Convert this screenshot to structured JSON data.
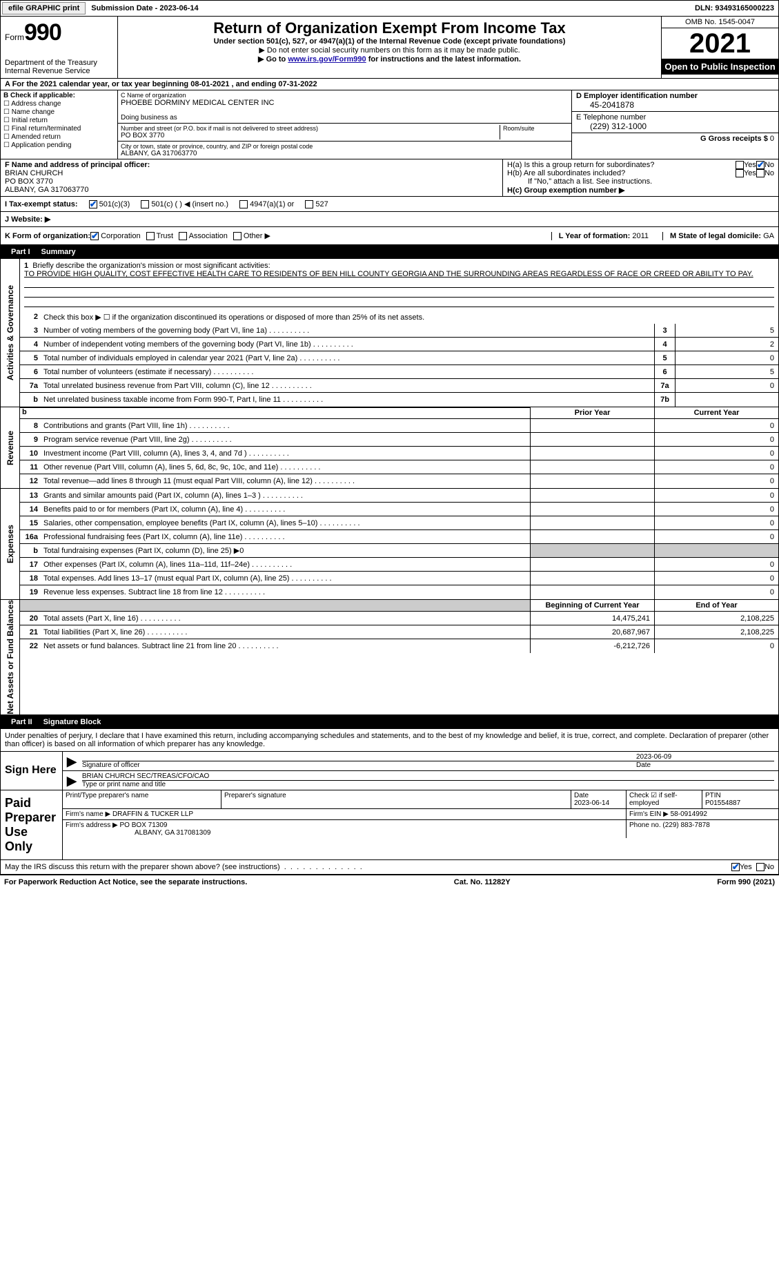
{
  "topbar": {
    "efile": "efile GRAPHIC print",
    "subdate_label": "Submission Date - ",
    "subdate": "2023-06-14",
    "dln_label": "DLN: ",
    "dln": "93493165000223"
  },
  "header": {
    "form_label": "Form",
    "form_num": "990",
    "title": "Return of Organization Exempt From Income Tax",
    "subtitle": "Under section 501(c), 527, or 4947(a)(1) of the Internal Revenue Code (except private foundations)",
    "note1": "▶ Do not enter social security numbers on this form as it may be made public.",
    "note2_pre": "▶ Go to ",
    "note2_link": "www.irs.gov/Form990",
    "note2_post": " for instructions and the latest information.",
    "dept": "Department of the Treasury",
    "irs": "Internal Revenue Service",
    "omb": "OMB No. 1545-0047",
    "year": "2021",
    "otp": "Open to Public Inspection"
  },
  "period": {
    "text": "A For the 2021 calendar year, or tax year beginning ",
    "begin": "08-01-2021",
    "mid": " , and ending ",
    "end": "07-31-2022"
  },
  "sectB": {
    "label": "B Check if applicable:",
    "opts": [
      "Address change",
      "Name change",
      "Initial return",
      "Final return/terminated",
      "Amended return",
      "Application pending"
    ]
  },
  "sectC": {
    "name_label": "C Name of organization",
    "name": "PHOEBE DORMINY MEDICAL CENTER INC",
    "dba_label": "Doing business as",
    "dba": "",
    "addr_label": "Number and street (or P.O. box if mail is not delivered to street address)",
    "room_label": "Room/suite",
    "addr": "PO BOX 3770",
    "city_label": "City or town, state or province, country, and ZIP or foreign postal code",
    "city": "ALBANY, GA  317063770"
  },
  "sectD": {
    "ein_label": "D Employer identification number",
    "ein": "45-2041878",
    "tel_label": "E Telephone number",
    "tel": "(229) 312-1000",
    "gross_label": "G Gross receipts $ ",
    "gross": "0"
  },
  "sectF": {
    "label": "F Name and address of principal officer:",
    "name": "BRIAN CHURCH",
    "addr1": "PO BOX 3770",
    "addr2": "ALBANY, GA  317063770"
  },
  "sectH": {
    "a_label": "H(a)  Is this a group return for subordinates?",
    "b_label": "H(b)  Are all subordinates included?",
    "b_note": "If \"No,\" attach a list. See instructions.",
    "c_label": "H(c)  Group exemption number ▶",
    "yes": "Yes",
    "no": "No"
  },
  "sectI": {
    "label": "I  Tax-exempt status:",
    "o1": "501(c)(3)",
    "o2": "501(c) (  ) ◀ (insert no.)",
    "o3": "4947(a)(1) or",
    "o4": "527"
  },
  "sectJ": {
    "label": "J  Website: ▶"
  },
  "sectK": {
    "label": "K Form of organization:",
    "o1": "Corporation",
    "o2": "Trust",
    "o3": "Association",
    "o4": "Other ▶",
    "L": "L Year of formation: ",
    "L_val": "2011",
    "M": "M State of legal domicile: ",
    "M_val": "GA"
  },
  "part1": {
    "hdr_num": "Part I",
    "hdr_title": "Summary",
    "vtab_ag": "Activities & Governance",
    "vtab_rev": "Revenue",
    "vtab_exp": "Expenses",
    "vtab_na": "Net Assets or Fund Balances",
    "l1": "Briefly describe the organization's mission or most significant activities:",
    "mission": "TO PROVIDE HIGH QUALITY, COST EFFECTIVE HEALTH CARE TO RESIDENTS OF BEN HILL COUNTY GEORGIA AND THE SURROUNDING AREAS REGARDLESS OF RACE OR CREED OR ABILITY TO PAY.",
    "l2": "Check this box ▶ ☐ if the organization discontinued its operations or disposed of more than 25% of its net assets.",
    "lines_ag": [
      {
        "n": "3",
        "d": "Number of voting members of the governing body (Part VI, line 1a)",
        "box": "3",
        "v": "5"
      },
      {
        "n": "4",
        "d": "Number of independent voting members of the governing body (Part VI, line 1b)",
        "box": "4",
        "v": "2"
      },
      {
        "n": "5",
        "d": "Total number of individuals employed in calendar year 2021 (Part V, line 2a)",
        "box": "5",
        "v": "0"
      },
      {
        "n": "6",
        "d": "Total number of volunteers (estimate if necessary)",
        "box": "6",
        "v": "5"
      },
      {
        "n": "7a",
        "d": "Total unrelated business revenue from Part VIII, column (C), line 12",
        "box": "7a",
        "v": "0"
      },
      {
        "n": "b",
        "d": "Net unrelated business taxable income from Form 990-T, Part I, line 11",
        "box": "7b",
        "v": ""
      }
    ],
    "col_prior": "Prior Year",
    "col_curr": "Current Year",
    "lines_rev": [
      {
        "n": "8",
        "d": "Contributions and grants (Part VIII, line 1h)",
        "p": "",
        "c": "0"
      },
      {
        "n": "9",
        "d": "Program service revenue (Part VIII, line 2g)",
        "p": "",
        "c": "0"
      },
      {
        "n": "10",
        "d": "Investment income (Part VIII, column (A), lines 3, 4, and 7d )",
        "p": "",
        "c": "0"
      },
      {
        "n": "11",
        "d": "Other revenue (Part VIII, column (A), lines 5, 6d, 8c, 9c, 10c, and 11e)",
        "p": "",
        "c": "0"
      },
      {
        "n": "12",
        "d": "Total revenue—add lines 8 through 11 (must equal Part VIII, column (A), line 12)",
        "p": "",
        "c": "0"
      }
    ],
    "lines_exp": [
      {
        "n": "13",
        "d": "Grants and similar amounts paid (Part IX, column (A), lines 1–3 )",
        "p": "",
        "c": "0"
      },
      {
        "n": "14",
        "d": "Benefits paid to or for members (Part IX, column (A), line 4)",
        "p": "",
        "c": "0"
      },
      {
        "n": "15",
        "d": "Salaries, other compensation, employee benefits (Part IX, column (A), lines 5–10)",
        "p": "",
        "c": "0"
      },
      {
        "n": "16a",
        "d": "Professional fundraising fees (Part IX, column (A), line 11e)",
        "p": "",
        "c": "0"
      },
      {
        "n": "b",
        "d": "Total fundraising expenses (Part IX, column (D), line 25) ▶0",
        "grey": true
      },
      {
        "n": "17",
        "d": "Other expenses (Part IX, column (A), lines 11a–11d, 11f–24e)",
        "p": "",
        "c": "0"
      },
      {
        "n": "18",
        "d": "Total expenses. Add lines 13–17 (must equal Part IX, column (A), line 25)",
        "p": "",
        "c": "0"
      },
      {
        "n": "19",
        "d": "Revenue less expenses. Subtract line 18 from line 12",
        "p": "",
        "c": "0"
      }
    ],
    "col_beg": "Beginning of Current Year",
    "col_end": "End of Year",
    "lines_na": [
      {
        "n": "20",
        "d": "Total assets (Part X, line 16)",
        "p": "14,475,241",
        "c": "2,108,225"
      },
      {
        "n": "21",
        "d": "Total liabilities (Part X, line 26)",
        "p": "20,687,967",
        "c": "2,108,225"
      },
      {
        "n": "22",
        "d": "Net assets or fund balances. Subtract line 21 from line 20",
        "p": "-6,212,726",
        "c": "0"
      }
    ]
  },
  "part2": {
    "hdr_num": "Part II",
    "hdr_title": "Signature Block",
    "decl": "Under penalties of perjury, I declare that I have examined this return, including accompanying schedules and statements, and to the best of my knowledge and belief, it is true, correct, and complete. Declaration of preparer (other than officer) is based on all information of which preparer has any knowledge.",
    "sign_here": "Sign Here",
    "sig_officer": "Signature of officer",
    "sig_date": "Date",
    "sig_date_val": "2023-06-09",
    "officer_name": "BRIAN CHURCH  SEC/TREAS/CFO/CAO",
    "type_name": "Type or print name and title",
    "paid_prep": "Paid Preparer Use Only",
    "prep_name_label": "Print/Type preparer's name",
    "prep_sig_label": "Preparer's signature",
    "prep_date_label": "Date",
    "prep_date": "2023-06-14",
    "prep_check_label": "Check ☑ if self-employed",
    "ptin_label": "PTIN",
    "ptin": "P01554887",
    "firm_name_label": "Firm's name    ▶ ",
    "firm_name": "DRAFFIN & TUCKER LLP",
    "firm_ein_label": "Firm's EIN ▶ ",
    "firm_ein": "58-0914992",
    "firm_addr_label": "Firm's address ▶ ",
    "firm_addr": "PO BOX 71309",
    "firm_city": "ALBANY, GA  317081309",
    "firm_phone_label": "Phone no. ",
    "firm_phone": "(229) 883-7878",
    "discuss": "May the IRS discuss this return with the preparer shown above? (see instructions)",
    "yes": "Yes",
    "no": "No"
  },
  "footer": {
    "left": "For Paperwork Reduction Act Notice, see the separate instructions.",
    "mid": "Cat. No. 11282Y",
    "right": "Form 990 (2021)"
  }
}
